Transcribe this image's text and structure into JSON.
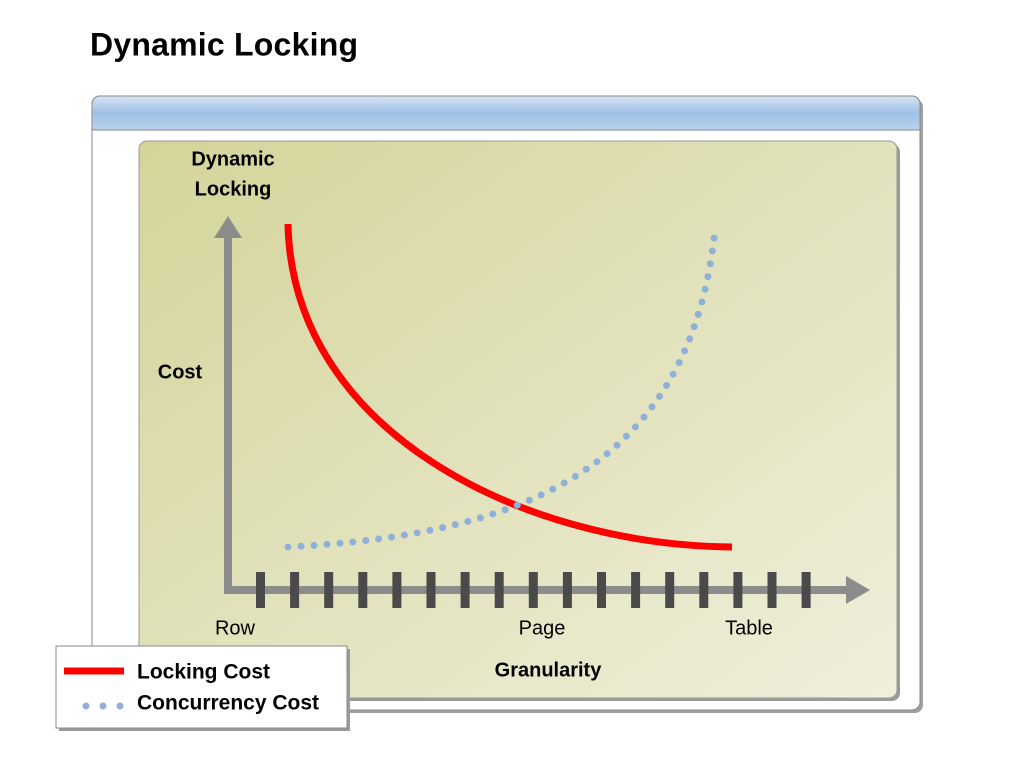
{
  "title": "Dynamic Locking",
  "diagram": {
    "heading_lines": [
      "Dynamic",
      "Locking"
    ],
    "y_label": "Cost",
    "x_labels": [
      "Row",
      "Page",
      "Table"
    ],
    "x_title": "Granularity"
  },
  "legend": [
    "Locking Cost",
    "Concurrency Cost"
  ]
}
